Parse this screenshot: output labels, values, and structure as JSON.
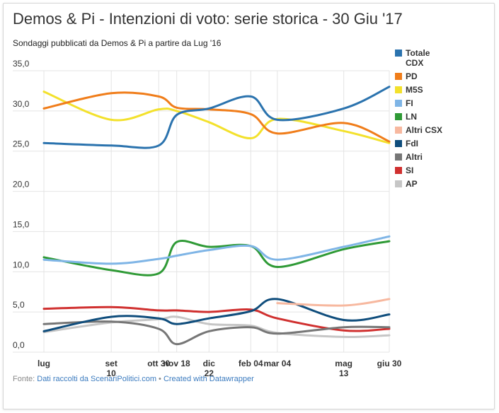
{
  "header": {
    "title": "Demos & Pi - Intenzioni di voto: serie storica - 30 Giu '17",
    "subtitle": "Sondaggi pubblicati da Demos & Pi a partire da Lug '16"
  },
  "footer": {
    "prefix": "Fonte: ",
    "source": "Dati raccolti da ScenariPolitici.com",
    "separator": " • ",
    "credit": "Created with Datawrapper"
  },
  "chart_data": {
    "type": "line",
    "title": "Demos & Pi - Intenzioni di voto: serie storica - 30 Giu '17",
    "subtitle": "Sondaggi pubblicati da Demos & Pi a partire da Lug '16",
    "xlabel": "",
    "ylabel": "",
    "ylim": [
      0,
      35
    ],
    "yticks": [
      "0,0",
      "5,0",
      "10,0",
      "15,0",
      "20,0",
      "25,0",
      "30,0",
      "35,0"
    ],
    "grid": true,
    "legend_position": "right",
    "x_tick_labels": [
      {
        "label": "lug",
        "sub": "",
        "x": "2016-07"
      },
      {
        "label": "set",
        "sub": "10",
        "x": "2016-09-10"
      },
      {
        "label": "ott 30",
        "sub": "",
        "x": "2016-10-30"
      },
      {
        "label": "nov 18",
        "sub": "",
        "x": "2016-11-18"
      },
      {
        "label": "dic",
        "sub": "22",
        "x": "2016-12-22"
      },
      {
        "label": "feb 04",
        "sub": "",
        "x": "2017-02-04"
      },
      {
        "label": "mar 04",
        "sub": "",
        "x": "2017-03-04"
      },
      {
        "label": "mag",
        "sub": "13",
        "x": "2017-05-13"
      },
      {
        "label": "giu 30",
        "sub": "",
        "x": "2017-06-30"
      }
    ],
    "x": [
      "2016-07",
      "2016-09-10",
      "2016-10-30",
      "2016-11-18",
      "2016-12-22",
      "2017-02-04",
      "2017-03-04",
      "2017-05-13",
      "2017-06-30"
    ],
    "series": [
      {
        "name": "Totale CDX",
        "color": "#2b73ae",
        "values": [
          26.0,
          25.7,
          25.7,
          29.5,
          30.3,
          31.8,
          28.9,
          30.3,
          33.0
        ]
      },
      {
        "name": "PD",
        "color": "#f07d1a",
        "values": [
          30.3,
          32.2,
          31.8,
          30.4,
          30.2,
          29.6,
          27.2,
          28.5,
          26.2
        ]
      },
      {
        "name": "M5S",
        "color": "#f3e12c",
        "values": [
          32.4,
          28.9,
          30.2,
          30.0,
          28.6,
          26.6,
          29.0,
          27.5,
          26.0
        ]
      },
      {
        "name": "FI",
        "color": "#7fb5e6",
        "values": [
          11.5,
          11.0,
          11.6,
          12.0,
          12.7,
          13.2,
          11.5,
          13.1,
          14.4
        ]
      },
      {
        "name": "LN",
        "color": "#2f9a36",
        "values": [
          11.8,
          10.2,
          9.8,
          13.7,
          13.1,
          13.2,
          10.6,
          12.8,
          13.8
        ]
      },
      {
        "name": "Altri CSX",
        "color": "#f7b89f",
        "values": [
          null,
          null,
          null,
          null,
          null,
          null,
          6.1,
          5.8,
          6.6
        ]
      },
      {
        "name": "FdI",
        "color": "#0f4d7c",
        "values": [
          2.6,
          4.4,
          4.2,
          3.5,
          4.2,
          5.1,
          6.6,
          4.0,
          4.7
        ]
      },
      {
        "name": "Altri",
        "color": "#767676",
        "values": [
          3.5,
          3.8,
          2.9,
          1.0,
          2.6,
          3.1,
          2.3,
          3.1,
          3.1
        ]
      },
      {
        "name": "SI",
        "color": "#d0302f",
        "values": [
          5.4,
          5.6,
          5.2,
          5.2,
          5.0,
          5.3,
          4.2,
          2.7,
          2.9
        ]
      },
      {
        "name": "AP",
        "color": "#c6c6c6",
        "values": [
          2.5,
          3.7,
          4.1,
          4.4,
          3.5,
          3.3,
          2.4,
          1.9,
          2.1
        ]
      }
    ]
  }
}
